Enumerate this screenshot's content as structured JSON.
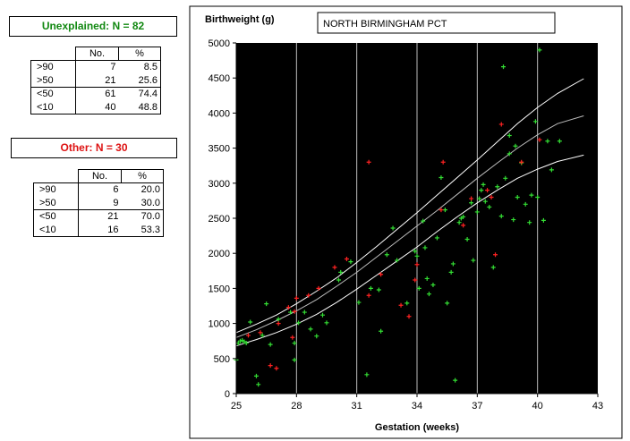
{
  "tables": [
    {
      "title": "Unexplained: N = 82",
      "color": "#118811",
      "headers": [
        "No.",
        "%"
      ],
      "rows": [
        {
          "label": ">90",
          "no": "7",
          "pct": "8.5"
        },
        {
          "label": ">50",
          "no": "21",
          "pct": "25.6"
        },
        {
          "label": "<50",
          "no": "61",
          "pct": "74.4"
        },
        {
          "label": "<10",
          "no": "40",
          "pct": "48.8"
        }
      ]
    },
    {
      "title": "Other: N = 30",
      "color": "#dd1111",
      "headers": [
        "No.",
        "%"
      ],
      "rows": [
        {
          "label": ">90",
          "no": "6",
          "pct": "20.0"
        },
        {
          "label": ">50",
          "no": "9",
          "pct": "30.0"
        },
        {
          "label": "<50",
          "no": "21",
          "pct": "70.0"
        },
        {
          "label": "<10",
          "no": "16",
          "pct": "53.3"
        }
      ]
    }
  ],
  "chart_data": {
    "type": "scatter",
    "title": "NORTH BIRMINGHAM PCT",
    "xlabel": "Gestation (weeks)",
    "ylabel": "Birthweight (g)",
    "xlim": [
      25,
      43
    ],
    "ylim": [
      0,
      5000
    ],
    "xticks": [
      25,
      28,
      31,
      34,
      37,
      40,
      43
    ],
    "yticks": [
      0,
      500,
      1000,
      1500,
      2000,
      2500,
      3000,
      3500,
      4000,
      4500,
      5000
    ],
    "grid_x": true,
    "background": "#000000",
    "curves": [
      {
        "name": "upper",
        "x": [
          25,
          26,
          27,
          28,
          29,
          30,
          31,
          32,
          33,
          34,
          35,
          36,
          37,
          38,
          39,
          40,
          41,
          42.3
        ],
        "y": [
          870,
          990,
          1120,
          1280,
          1460,
          1650,
          1870,
          2100,
          2340,
          2580,
          2830,
          3080,
          3330,
          3590,
          3850,
          4080,
          4280,
          4490
        ]
      },
      {
        "name": "middle",
        "x": [
          25,
          26,
          27,
          28,
          29,
          30,
          31,
          32,
          33,
          34,
          35,
          36,
          37,
          38,
          39,
          40,
          41,
          42.3
        ],
        "y": [
          800,
          910,
          1040,
          1180,
          1340,
          1530,
          1730,
          1950,
          2170,
          2390,
          2610,
          2840,
          3070,
          3290,
          3500,
          3690,
          3850,
          3960
        ]
      },
      {
        "name": "lower",
        "x": [
          25,
          26,
          27,
          28,
          29,
          30,
          31,
          32,
          33,
          34,
          35,
          36,
          37,
          38,
          39,
          40,
          41,
          42.3
        ],
        "y": [
          680,
          770,
          870,
          990,
          1130,
          1300,
          1490,
          1690,
          1890,
          2090,
          2310,
          2520,
          2720,
          2900,
          3070,
          3200,
          3310,
          3400
        ]
      }
    ],
    "series": [
      {
        "color": "#33dd33",
        "points": [
          [
            25,
            480
          ],
          [
            25.1,
            720
          ],
          [
            25.2,
            750
          ],
          [
            25.3,
            760
          ],
          [
            25.4,
            740
          ],
          [
            25.5,
            720
          ],
          [
            25.7,
            1020
          ],
          [
            26,
            250
          ],
          [
            26.1,
            130
          ],
          [
            26.3,
            830
          ],
          [
            26.7,
            700
          ],
          [
            27.1,
            1060
          ],
          [
            27.9,
            480
          ],
          [
            27.9,
            720
          ],
          [
            28.1,
            1010
          ],
          [
            28.4,
            1160
          ],
          [
            28.7,
            920
          ],
          [
            29,
            820
          ],
          [
            29.3,
            1120
          ],
          [
            30.1,
            1620
          ],
          [
            30.2,
            1730
          ],
          [
            31.1,
            1300
          ],
          [
            31.5,
            270
          ],
          [
            31.7,
            1500
          ],
          [
            32.2,
            890
          ],
          [
            32.5,
            1980
          ],
          [
            32.8,
            2360
          ],
          [
            33,
            1900
          ],
          [
            33.5,
            1290
          ],
          [
            34,
            1960
          ],
          [
            34.1,
            1500
          ],
          [
            34.4,
            2080
          ],
          [
            34.5,
            1640
          ],
          [
            34.6,
            1420
          ],
          [
            34.8,
            1550
          ],
          [
            35,
            2220
          ],
          [
            35.2,
            3080
          ],
          [
            35.4,
            2620
          ],
          [
            35.5,
            1290
          ],
          [
            35.7,
            1730
          ],
          [
            35.8,
            1850
          ],
          [
            35.9,
            190
          ],
          [
            36.2,
            2500
          ],
          [
            36.3,
            2520
          ],
          [
            36.5,
            2200
          ],
          [
            36.7,
            2720
          ],
          [
            36.8,
            1900
          ],
          [
            37,
            2590
          ],
          [
            37.1,
            2780
          ],
          [
            37.2,
            2900
          ],
          [
            37.4,
            2740
          ],
          [
            37.6,
            2660
          ],
          [
            37.8,
            1800
          ],
          [
            38,
            2950
          ],
          [
            38.2,
            2530
          ],
          [
            38.3,
            4660
          ],
          [
            38.4,
            3070
          ],
          [
            38.6,
            3420
          ],
          [
            38.8,
            2480
          ],
          [
            39,
            2800
          ],
          [
            39.2,
            3290
          ],
          [
            39.4,
            2700
          ],
          [
            39.7,
            2830
          ],
          [
            39.9,
            3880
          ],
          [
            40,
            2800
          ],
          [
            40.1,
            4900
          ],
          [
            40.3,
            2470
          ],
          [
            40.5,
            3600
          ],
          [
            40.7,
            3190
          ],
          [
            41.1,
            3600
          ],
          [
            38.9,
            3530
          ],
          [
            37.3,
            2980
          ],
          [
            36.1,
            2440
          ],
          [
            33.9,
            2030
          ],
          [
            32.1,
            1480
          ],
          [
            30.7,
            1880
          ],
          [
            29.5,
            1010
          ],
          [
            27.7,
            1160
          ],
          [
            26.5,
            1280
          ],
          [
            39.6,
            2440
          ],
          [
            38.6,
            3680
          ],
          [
            34.3,
            2460
          ]
        ]
      },
      {
        "color": "#ff2222",
        "points": [
          [
            25.6,
            830
          ],
          [
            26.2,
            870
          ],
          [
            26.7,
            400
          ],
          [
            27,
            360
          ],
          [
            27.1,
            1000
          ],
          [
            27.6,
            1230
          ],
          [
            27.9,
            1170
          ],
          [
            28,
            1360
          ],
          [
            28.6,
            1400
          ],
          [
            29.9,
            1800
          ],
          [
            30.5,
            1920
          ],
          [
            31.6,
            1400
          ],
          [
            31.6,
            3300
          ],
          [
            33.2,
            1260
          ],
          [
            33.6,
            1100
          ],
          [
            35.3,
            3300
          ],
          [
            36.7,
            2780
          ],
          [
            37.9,
            1980
          ],
          [
            38.2,
            3840
          ],
          [
            37.7,
            2800
          ],
          [
            39.2,
            3300
          ],
          [
            37.5,
            2900
          ],
          [
            34,
            1840
          ],
          [
            35.2,
            2620
          ],
          [
            36.3,
            2400
          ],
          [
            40.1,
            3620
          ],
          [
            29.1,
            1500
          ],
          [
            32.2,
            1700
          ],
          [
            27.8,
            800
          ],
          [
            33.9,
            1620
          ]
        ]
      }
    ]
  }
}
